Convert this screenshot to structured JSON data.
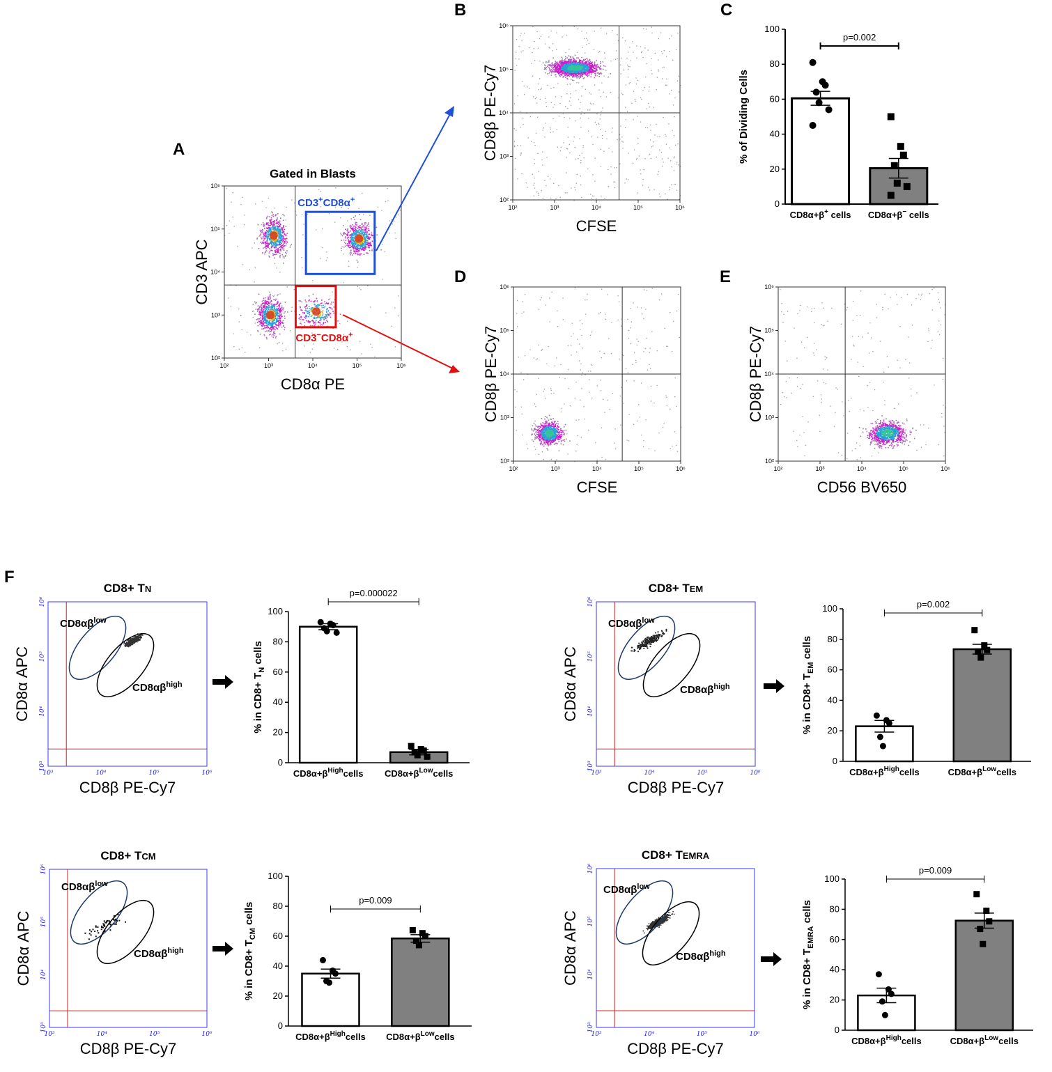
{
  "chart_data": [
    {
      "id": "A",
      "type": "scatter",
      "letter": "A",
      "title": "Gated in Blasts",
      "xlabel": "CD8α PE",
      "ylabel": "CD3 APC",
      "xscale": "log",
      "yscale": "log",
      "xlim": [
        100,
        1000000
      ],
      "ylim": [
        100,
        1000000
      ],
      "x_ticks": [
        "10²",
        "10³",
        "10⁴",
        "10⁵",
        "10⁶"
      ],
      "y_ticks": [
        "10²",
        "10³",
        "10⁴",
        "10⁵",
        "10⁶"
      ],
      "quadrant": {
        "x": 4000,
        "y": 5000
      },
      "populations": [
        {
          "name": "CD3+CD8α−",
          "cx": 1300,
          "cy": 70000
        },
        {
          "name": "CD3+CD8α+",
          "cx": 110000,
          "cy": 60000
        },
        {
          "name": "CD3−CD8α−",
          "cx": 1100,
          "cy": 1000
        },
        {
          "name": "CD3−CD8α+",
          "cx": 12000,
          "cy": 1200
        }
      ],
      "gates": [
        {
          "label_main": "CD3",
          "sup1": "+",
          "label_mid": "CD8α",
          "sup2": "+",
          "color": "#1f4fd6",
          "x_range": [
            7000,
            250000
          ],
          "y_range": [
            9000,
            250000
          ]
        },
        {
          "label_main": "CD3",
          "sup1": "−",
          "label_mid": "CD8α",
          "sup2": "+",
          "color": "#e01010",
          "x_range": [
            4100,
            33000
          ],
          "y_range": [
            520,
            4700
          ]
        }
      ]
    },
    {
      "id": "B",
      "type": "scatter",
      "letter": "B",
      "xlabel": "CFSE",
      "ylabel": "CD8β PE-Cy7",
      "xscale": "log",
      "yscale": "log",
      "xlim": [
        100,
        1000000
      ],
      "ylim": [
        100,
        1000000
      ],
      "x_ticks": [
        "10²",
        "10³",
        "10⁴",
        "10⁵",
        "10⁶"
      ],
      "y_ticks": [
        "10²",
        "10³",
        "10⁴",
        "10⁵",
        "10⁶"
      ],
      "quadrant": {
        "x": 35000,
        "y": 10000
      },
      "populations": [
        {
          "name": "CD8β+ dividing",
          "cx": 3000,
          "cy": 110000
        }
      ]
    },
    {
      "id": "C",
      "type": "bar",
      "letter": "C",
      "ylabel": "% of Dividing Cells",
      "ylim": [
        0,
        100
      ],
      "yticks": [
        0,
        20,
        40,
        60,
        80,
        100
      ],
      "categories": [
        {
          "main": "CD8α+β",
          "sup": "+",
          "tail": " cells"
        },
        {
          "main": "CD8α+β",
          "sup": "−",
          "tail": " cells"
        }
      ],
      "values": [
        60.5,
        20.5
      ],
      "sem": [
        4.0,
        5.6
      ],
      "points": [
        [
          81,
          70,
          68,
          64,
          58,
          54,
          45
        ],
        [
          50,
          33,
          28,
          22,
          12,
          10,
          5
        ]
      ],
      "bar_colors": [
        "#ffffff",
        "#808080"
      ],
      "pvalue": "p=0.002"
    },
    {
      "id": "D",
      "type": "scatter",
      "letter": "D",
      "xlabel": "CFSE",
      "ylabel": "CD8β PE-Cy7",
      "xscale": "log",
      "yscale": "log",
      "xlim": [
        100,
        1000000
      ],
      "ylim": [
        100,
        1000000
      ],
      "x_ticks": [
        "10²",
        "10³",
        "10⁴",
        "10⁵",
        "10⁶"
      ],
      "y_ticks": [
        "10²",
        "10³",
        "10⁴",
        "10⁵",
        "10⁶"
      ],
      "quadrant": {
        "x": 40000,
        "y": 10000
      },
      "populations": [
        {
          "name": "CD8β− cells",
          "cx": 700,
          "cy": 450
        }
      ]
    },
    {
      "id": "E",
      "type": "scatter",
      "letter": "E",
      "xlabel": "CD56 BV650",
      "ylabel": "CD8β PE-Cy7",
      "xscale": "log",
      "yscale": "log",
      "xlim": [
        100,
        1000000
      ],
      "ylim": [
        100,
        1000000
      ],
      "x_ticks": [
        "10²",
        "10³",
        "10⁴",
        "10⁵",
        "10⁶"
      ],
      "y_ticks": [
        "10²",
        "10³",
        "10⁴",
        "10⁵",
        "10⁶"
      ],
      "quadrant": {
        "x": 4000,
        "y": 10000
      },
      "populations": [
        {
          "name": "CD56+ cells",
          "cx": 40000,
          "cy": 450
        }
      ]
    },
    {
      "id": "F-TN-flow",
      "type": "scatter",
      "letter": "F",
      "title_main": "CD8+ T",
      "title_sub": "N",
      "xlabel": "CD8β PE-Cy7",
      "ylabel": "CD8α APC",
      "xlim": [
        1000,
        1000000
      ],
      "ylim": [
        1000,
        1000000
      ],
      "x_ticks": [
        "10³",
        "10⁴",
        "10⁵",
        "10⁶"
      ],
      "y_ticks": [
        "10³",
        "10⁴",
        "10⁵",
        "10⁶"
      ],
      "gate_low": {
        "main": "CD8αβ",
        "sup": "low"
      },
      "gate_high": {
        "main": "CD8αβ",
        "sup": "high"
      }
    },
    {
      "id": "F-TN-bar",
      "type": "bar",
      "ylabel_main": "% in CD8+ T",
      "ylabel_sub": "N",
      "ylabel_tail": " cells",
      "ylim": [
        0,
        100
      ],
      "yticks": [
        0,
        20,
        40,
        60,
        80,
        100
      ],
      "categories": [
        {
          "main": "CD8α+β",
          "sup": "High",
          "tail": "cells"
        },
        {
          "main": "CD8α+β",
          "sup": "Low",
          "tail": "cells"
        }
      ],
      "values": [
        90,
        7
      ],
      "sem": [
        2.0,
        1.8
      ],
      "points": [
        [
          93,
          92,
          91,
          89,
          87,
          86
        ],
        [
          11,
          9,
          8,
          7,
          5,
          4
        ]
      ],
      "bar_colors": [
        "#ffffff",
        "#808080"
      ],
      "pvalue": "p=0.000022"
    },
    {
      "id": "F-TEM-flow",
      "type": "scatter",
      "title_main": "CD8+ T",
      "title_sub": "EM",
      "xlabel": "CD8β PE-Cy7",
      "ylabel": "CD8α APC",
      "xlim": [
        1000,
        1000000
      ],
      "ylim": [
        1000,
        1000000
      ],
      "x_ticks": [
        "10³",
        "10⁴",
        "10⁵",
        "10⁶"
      ],
      "y_ticks": [
        "10³",
        "10⁴",
        "10⁵",
        "10⁶"
      ],
      "gate_low": {
        "main": "CD8αβ",
        "sup": "low"
      },
      "gate_high": {
        "main": "CD8αβ",
        "sup": "high"
      }
    },
    {
      "id": "F-TEM-bar",
      "type": "bar",
      "ylabel_main": "% in CD8+ T",
      "ylabel_sub": "EM",
      "ylabel_tail": " cells",
      "ylim": [
        0,
        100
      ],
      "yticks": [
        0,
        20,
        40,
        60,
        80,
        100
      ],
      "categories": [
        {
          "main": "CD8α+β",
          "sup": "High",
          "tail": "cells"
        },
        {
          "main": "CD8α+β",
          "sup": "Low",
          "tail": "cells"
        }
      ],
      "values": [
        23,
        73.5
      ],
      "sem": [
        3.8,
        3.2
      ],
      "points": [
        [
          30,
          27,
          25,
          16,
          10
        ],
        [
          86,
          76,
          73,
          72,
          68
        ]
      ],
      "bar_colors": [
        "#ffffff",
        "#808080"
      ],
      "pvalue": "p=0.002"
    },
    {
      "id": "F-TCM-flow",
      "type": "scatter",
      "title_main": "CD8+ T",
      "title_sub": "CM",
      "xlabel": "CD8β PE-Cy7",
      "ylabel": "CD8α APC",
      "xlim": [
        1000,
        1000000
      ],
      "ylim": [
        1000,
        1000000
      ],
      "x_ticks": [
        "10³",
        "10⁴",
        "10⁵",
        "10⁶"
      ],
      "y_ticks": [
        "10³",
        "10⁴",
        "10⁵",
        "10⁶"
      ],
      "gate_low": {
        "main": "CD8αβ",
        "sup": "low"
      },
      "gate_high": {
        "main": "CD8αβ",
        "sup": "high"
      }
    },
    {
      "id": "F-TCM-bar",
      "type": "bar",
      "ylabel_main": "% in CD8+ T",
      "ylabel_sub": "CM",
      "ylabel_tail": " cells",
      "ylim": [
        0,
        100
      ],
      "yticks": [
        0,
        20,
        40,
        60,
        80,
        100
      ],
      "categories": [
        {
          "main": "CD8α+β",
          "sup": "High",
          "tail": "cells"
        },
        {
          "main": "CD8α+β",
          "sup": "Low",
          "tail": "cells"
        }
      ],
      "values": [
        35,
        58.5
      ],
      "sem": [
        3.0,
        2.5
      ],
      "points": [
        [
          44,
          37,
          35,
          30,
          29
        ],
        [
          64,
          62,
          60,
          57,
          54
        ]
      ],
      "bar_colors": [
        "#ffffff",
        "#808080"
      ],
      "pvalue": "p=0.009"
    },
    {
      "id": "F-TEMRA-flow",
      "type": "scatter",
      "title_main": "CD8+ T",
      "title_sub": "EMRA",
      "xlabel": "CD8β PE-Cy7",
      "ylabel": "CD8α APC",
      "xlim": [
        1000,
        1000000
      ],
      "ylim": [
        1000,
        1000000
      ],
      "x_ticks": [
        "10³",
        "10⁴",
        "10⁵",
        "10⁶"
      ],
      "y_ticks": [
        "10³",
        "10⁴",
        "10⁵",
        "10⁶"
      ],
      "gate_low": {
        "main": "CD8αβ",
        "sup": "low"
      },
      "gate_high": {
        "main": "CD8αβ",
        "sup": "high"
      }
    },
    {
      "id": "F-TEMRA-bar",
      "type": "bar",
      "ylabel_main": "% in CD8+ T",
      "ylabel_sub": "EMRA",
      "ylabel_tail": " cells",
      "ylim": [
        0,
        100
      ],
      "yticks": [
        0,
        20,
        40,
        60,
        80,
        100
      ],
      "categories": [
        {
          "main": "CD8α+β",
          "sup": "High",
          "tail": "cells"
        },
        {
          "main": "CD8α+β",
          "sup": "Low",
          "tail": "cells"
        }
      ],
      "values": [
        23,
        72.5
      ],
      "sem": [
        4.8,
        5.0
      ],
      "points": [
        [
          37,
          27,
          24,
          19,
          10
        ],
        [
          90,
          79,
          72,
          67,
          57
        ]
      ],
      "bar_colors": [
        "#ffffff",
        "#808080"
      ],
      "pvalue": "p=0.009"
    }
  ]
}
